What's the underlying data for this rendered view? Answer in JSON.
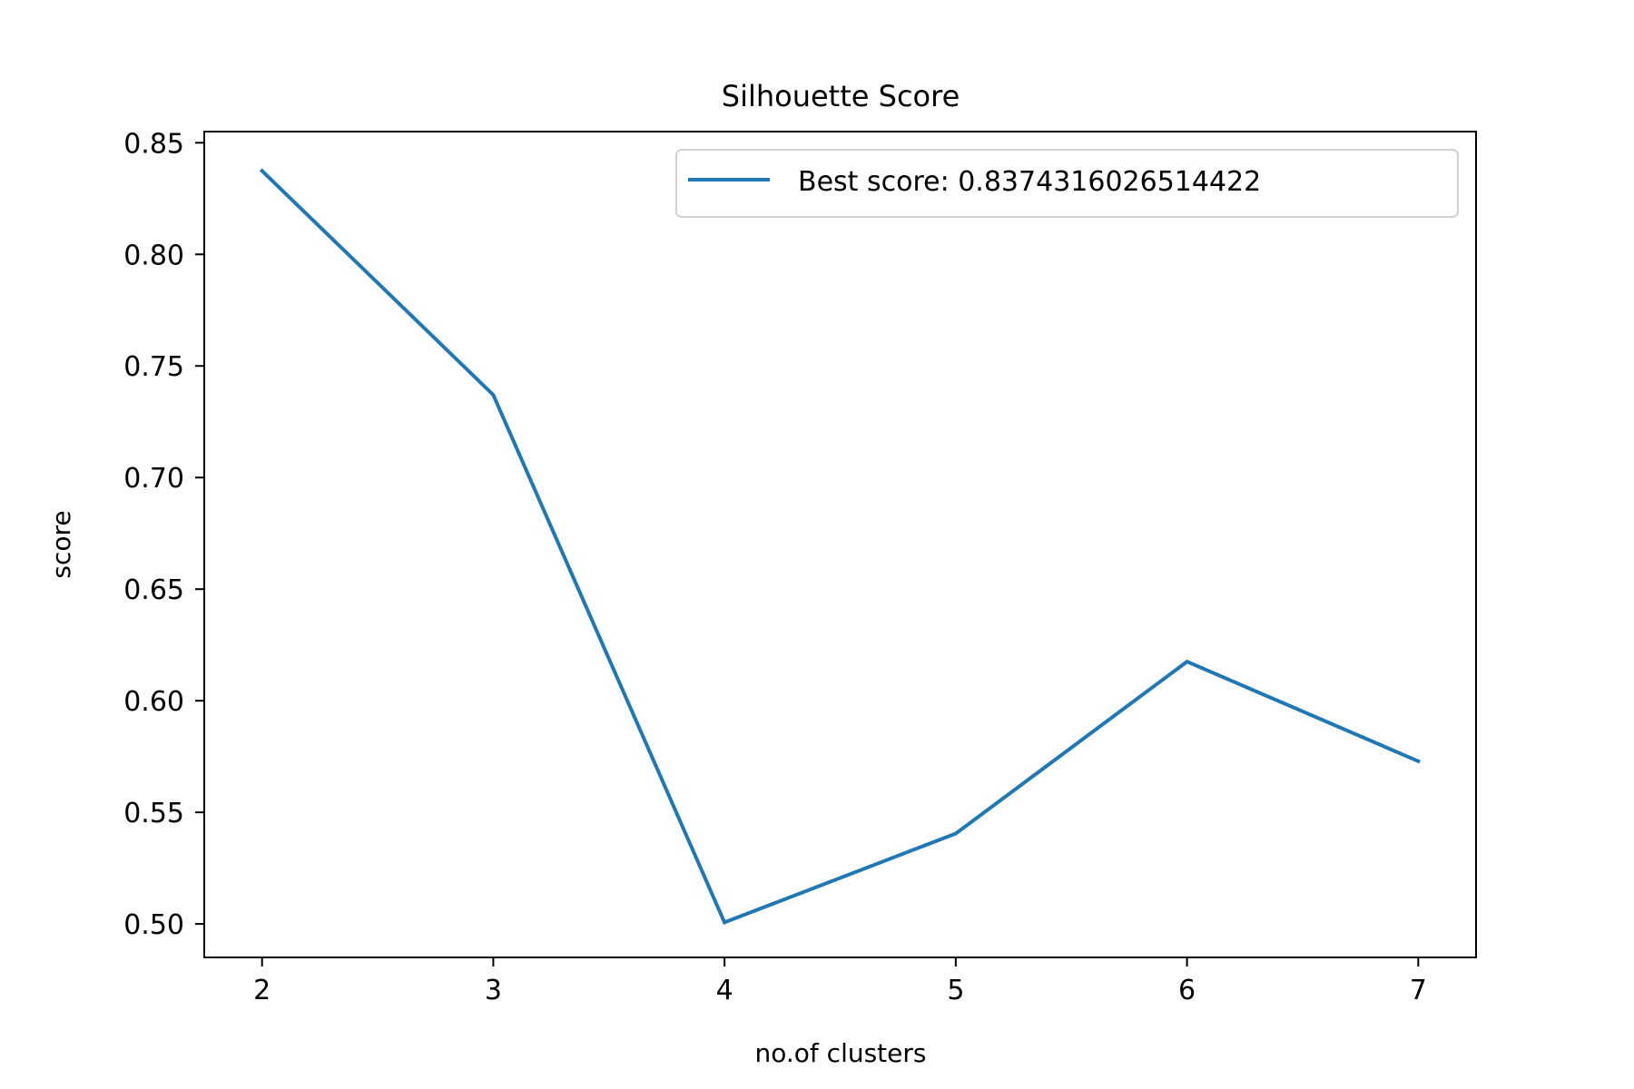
{
  "chart_data": {
    "type": "line",
    "title": "Silhouette Score",
    "xlabel": "no.of clusters",
    "ylabel": "score",
    "x": [
      2,
      3,
      4,
      5,
      6,
      7
    ],
    "series": [
      {
        "name": "Best score: 0.8374316026514422",
        "values": [
          0.8374,
          0.737,
          0.5007,
          0.5405,
          0.6175,
          0.5729
        ],
        "color": "#1f77b4"
      }
    ],
    "xlim": [
      1.75,
      7.25
    ],
    "ylim": [
      0.485,
      0.855
    ],
    "xticks": [
      "2",
      "3",
      "4",
      "5",
      "6",
      "7"
    ],
    "yticks": [
      "0.50",
      "0.55",
      "0.60",
      "0.65",
      "0.70",
      "0.75",
      "0.80",
      "0.85"
    ],
    "ytick_values": [
      0.5,
      0.55,
      0.6,
      0.65,
      0.7,
      0.75,
      0.8,
      0.85
    ],
    "grid": false,
    "legend": "upper-right"
  }
}
